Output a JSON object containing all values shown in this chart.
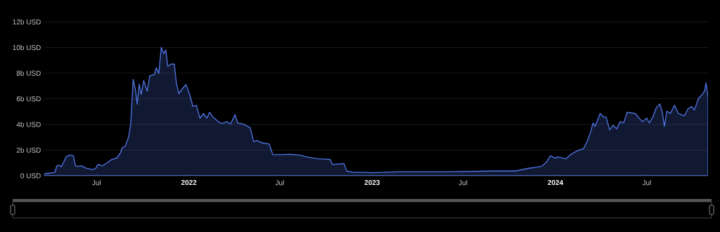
{
  "chart_data": {
    "type": "area",
    "color": "#4f74e3",
    "grid": "y",
    "ylim": [
      0,
      12
    ],
    "xlim": [
      "2021-03-19",
      "2024-10-31"
    ],
    "yticks": [
      {
        "value": 0,
        "label": "0 USD"
      },
      {
        "value": 2,
        "label": "2b USD"
      },
      {
        "value": 4,
        "label": "4b USD"
      },
      {
        "value": 6,
        "label": "6b USD"
      },
      {
        "value": 8,
        "label": "8b USD"
      },
      {
        "value": 10,
        "label": "10b USD"
      },
      {
        "value": 12,
        "label": "12b USD"
      }
    ],
    "xticks": [
      {
        "value": "2021-07-01",
        "label": "Jul"
      },
      {
        "value": "2022-01-01",
        "label": "2022"
      },
      {
        "value": "2022-07-01",
        "label": "Jul"
      },
      {
        "value": "2023-01-01",
        "label": "2023"
      },
      {
        "value": "2023-07-01",
        "label": "Jul"
      },
      {
        "value": "2024-01-01",
        "label": "2024"
      },
      {
        "value": "2024-07-01",
        "label": "Jul"
      }
    ],
    "x": [
      "2021-03-19",
      "2021-04-09",
      "2021-04-13",
      "2021-04-18",
      "2021-04-22",
      "2021-04-27",
      "2021-05-02",
      "2021-05-09",
      "2021-05-16",
      "2021-05-20",
      "2021-05-25",
      "2021-06-01",
      "2021-06-10",
      "2021-06-22",
      "2021-06-29",
      "2021-07-04",
      "2021-07-13",
      "2021-07-22",
      "2021-08-01",
      "2021-08-10",
      "2021-08-17",
      "2021-08-22",
      "2021-08-27",
      "2021-09-03",
      "2021-09-07",
      "2021-09-12",
      "2021-09-17",
      "2021-09-20",
      "2021-09-24",
      "2021-09-28",
      "2021-10-03",
      "2021-10-10",
      "2021-10-15",
      "2021-10-24",
      "2021-10-28",
      "2021-11-02",
      "2021-11-07",
      "2021-11-12",
      "2021-11-16",
      "2021-11-20",
      "2021-11-26",
      "2021-12-03",
      "2021-12-07",
      "2021-12-12",
      "2021-12-19",
      "2021-12-26",
      "2022-01-02",
      "2022-01-09",
      "2022-01-16",
      "2022-01-23",
      "2022-01-30",
      "2022-02-06",
      "2022-02-11",
      "2022-02-18",
      "2022-03-01",
      "2022-03-08",
      "2022-03-18",
      "2022-03-25",
      "2022-04-03",
      "2022-04-08",
      "2022-04-19",
      "2022-05-03",
      "2022-05-10",
      "2022-05-17",
      "2022-05-27",
      "2022-06-10",
      "2022-06-17",
      "2022-07-03",
      "2022-07-22",
      "2022-08-10",
      "2022-08-28",
      "2022-09-16",
      "2022-10-09",
      "2022-10-14",
      "2022-11-06",
      "2022-11-11",
      "2022-11-25",
      "2022-12-18",
      "2023-01-01",
      "2023-02-22",
      "2023-05-26",
      "2023-08-28",
      "2023-10-13",
      "2023-11-10",
      "2023-12-04",
      "2023-12-13",
      "2023-12-22",
      "2024-01-01",
      "2024-01-05",
      "2024-01-22",
      "2024-01-31",
      "2024-02-12",
      "2024-02-26",
      "2024-03-04",
      "2024-03-11",
      "2024-03-16",
      "2024-03-20",
      "2024-03-30",
      "2024-04-06",
      "2024-04-11",
      "2024-04-18",
      "2024-04-25",
      "2024-05-02",
      "2024-05-09",
      "2024-05-16",
      "2024-05-23",
      "2024-06-08",
      "2024-06-22",
      "2024-07-01",
      "2024-07-06",
      "2024-07-13",
      "2024-07-20",
      "2024-07-27",
      "2024-08-01",
      "2024-08-05",
      "2024-08-10",
      "2024-08-17",
      "2024-08-25",
      "2024-09-02",
      "2024-09-14",
      "2024-09-21",
      "2024-09-28",
      "2024-10-04",
      "2024-10-12",
      "2024-10-19",
      "2024-10-24",
      "2024-10-27",
      "2024-10-30",
      "2024-10-31"
    ],
    "values": [
      0.15,
      0.27,
      0.77,
      0.82,
      0.7,
      1.1,
      1.5,
      1.61,
      1.56,
      0.77,
      0.73,
      0.77,
      0.6,
      0.49,
      0.55,
      0.88,
      0.77,
      1.01,
      1.28,
      1.37,
      1.74,
      2.23,
      2.29,
      3.02,
      4.03,
      7.51,
      6.59,
      5.59,
      7.14,
      6.32,
      7.42,
      6.59,
      7.78,
      7.88,
      8.42,
      7.97,
      10.0,
      9.52,
      9.8,
      8.52,
      8.7,
      8.7,
      7.23,
      6.41,
      6.78,
      7.11,
      6.41,
      5.4,
      5.49,
      4.49,
      4.85,
      4.49,
      4.95,
      4.58,
      4.21,
      4.07,
      4.21,
      4.03,
      4.76,
      4.12,
      4.03,
      3.75,
      2.66,
      2.75,
      2.56,
      2.47,
      1.65,
      1.65,
      1.68,
      1.61,
      1.43,
      1.32,
      1.28,
      0.88,
      0.95,
      0.37,
      0.27,
      0.27,
      0.24,
      0.31,
      0.31,
      0.37,
      0.37,
      0.59,
      0.73,
      1.01,
      1.56,
      1.37,
      1.47,
      1.32,
      1.65,
      1.92,
      2.11,
      2.66,
      3.39,
      4.12,
      3.85,
      4.85,
      4.58,
      4.58,
      3.57,
      3.94,
      3.66,
      4.21,
      4.12,
      4.95,
      4.85,
      4.21,
      4.49,
      4.12,
      4.58,
      5.31,
      5.59,
      4.95,
      3.85,
      5.04,
      4.85,
      5.49,
      4.85,
      4.67,
      5.22,
      5.4,
      5.13,
      6.04,
      6.32,
      6.59,
      7.23,
      6.41,
      6.04
    ]
  }
}
